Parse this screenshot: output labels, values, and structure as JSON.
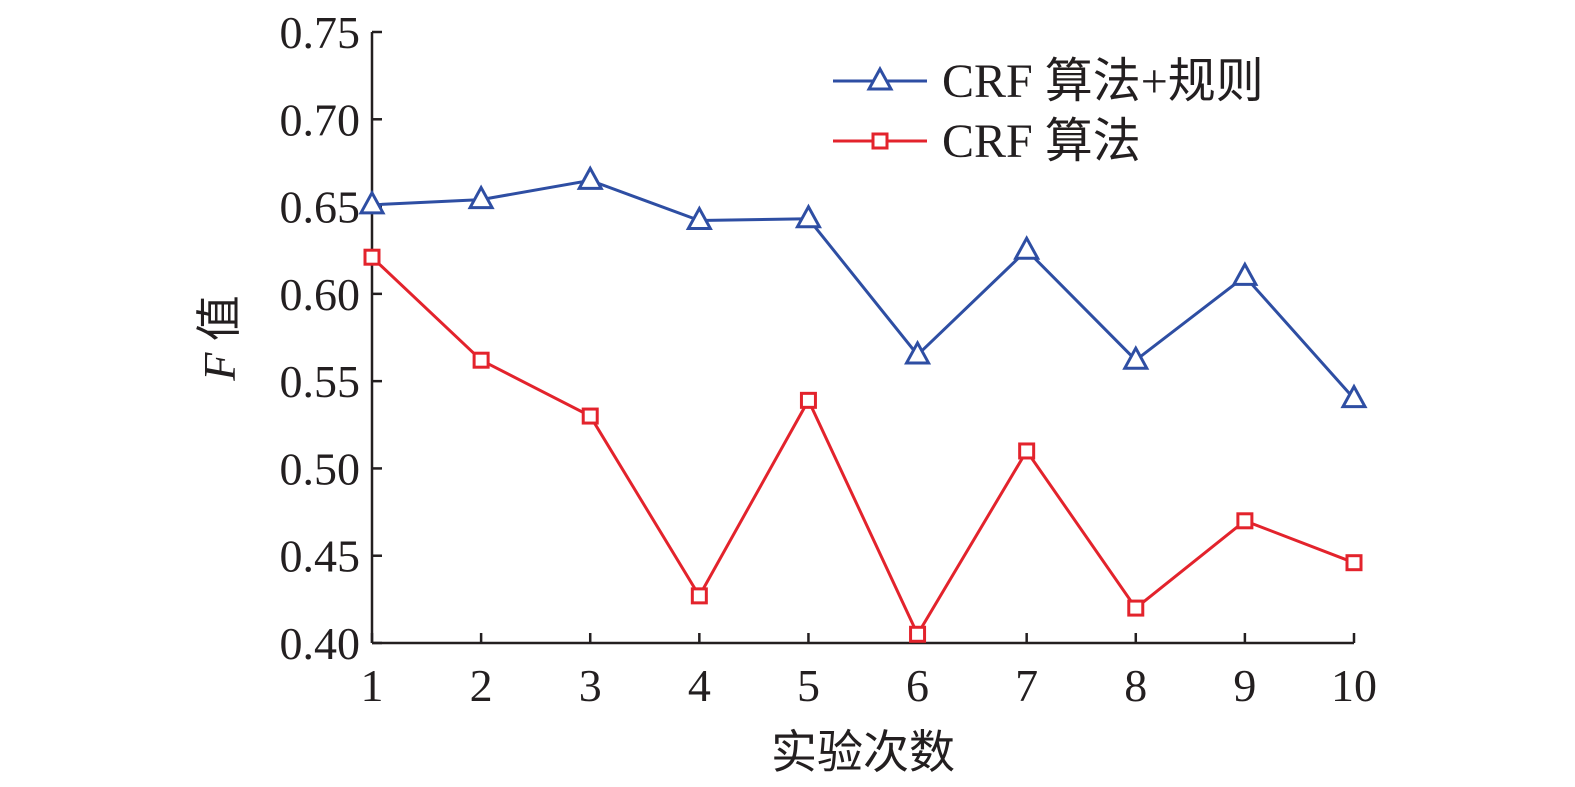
{
  "chart_data": {
    "type": "line",
    "title": "",
    "xlabel": "实验次数",
    "ylabel_italic": "F",
    "ylabel_rest": " 值",
    "x": [
      1,
      2,
      3,
      4,
      5,
      6,
      7,
      8,
      9,
      10
    ],
    "xlim": [
      1,
      10
    ],
    "ylim": [
      0.4,
      0.75
    ],
    "yticks": [
      "0.40",
      "0.45",
      "0.50",
      "0.55",
      "0.60",
      "0.65",
      "0.70",
      "0.75"
    ],
    "xticks": [
      "1",
      "2",
      "3",
      "4",
      "5",
      "6",
      "7",
      "8",
      "9",
      "10"
    ],
    "grid": false,
    "legend_position": "top-right",
    "series": [
      {
        "name": "CRF 算法+规则",
        "color": "#2e4ea3",
        "marker": "triangle",
        "values": [
          0.651,
          0.654,
          0.665,
          0.642,
          0.643,
          0.565,
          0.625,
          0.562,
          0.61,
          0.54
        ]
      },
      {
        "name": "CRF 算法",
        "color": "#e3232c",
        "marker": "square",
        "values": [
          0.621,
          0.562,
          0.53,
          0.427,
          0.539,
          0.405,
          0.51,
          0.42,
          0.47,
          0.446
        ]
      }
    ]
  }
}
